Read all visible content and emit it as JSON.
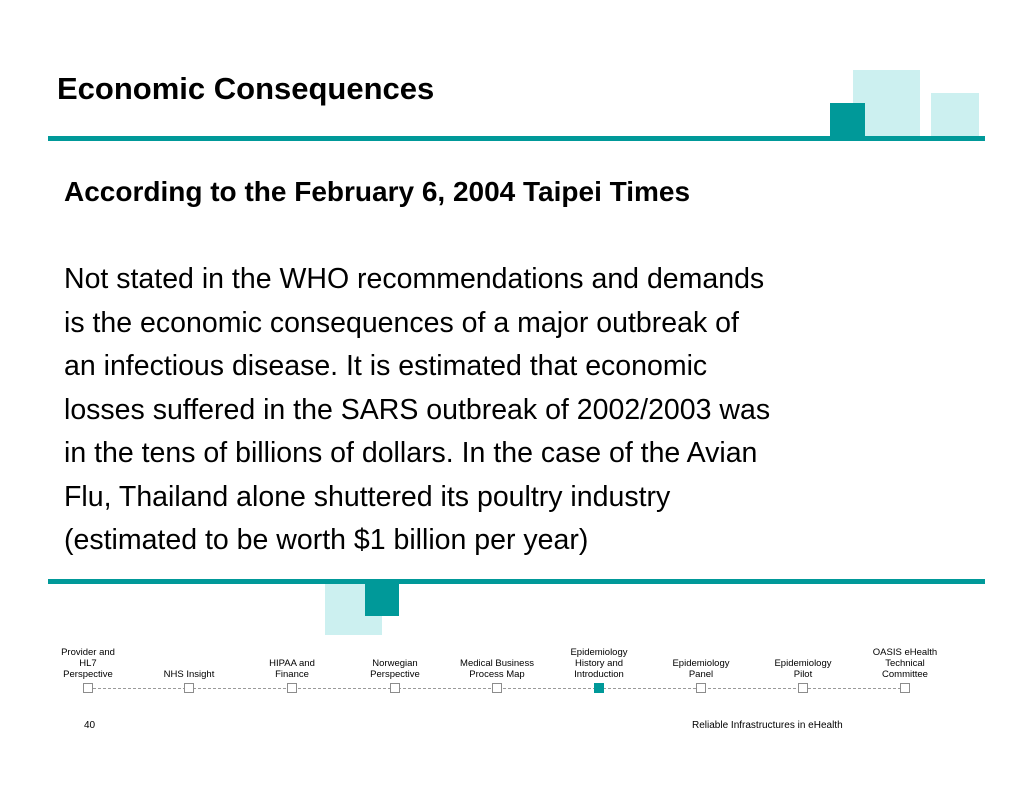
{
  "slide": {
    "title": "Economic Consequences",
    "subtitle": "According to the February 6, 2004 Taipei Times",
    "body_lines": [
      "Not stated in the WHO recommendations and demands",
      "is the economic consequences of a major outbreak of",
      "an infectious disease. It is estimated that economic",
      "losses suffered in the SARS outbreak of 2002/2003 was",
      "in the tens of billions of dollars. In the case of the Avian",
      "Flu, Thailand alone shuttered its poultry industry",
      "(estimated to be worth $1 billion per year)"
    ]
  },
  "nav": {
    "items": [
      {
        "label_lines": [
          "Provider and",
          "HL7",
          "Perspective"
        ],
        "active": false
      },
      {
        "label_lines": [
          "NHS Insight"
        ],
        "active": false
      },
      {
        "label_lines": [
          "HIPAA and",
          "Finance"
        ],
        "active": false
      },
      {
        "label_lines": [
          "Norwegian",
          "Perspective"
        ],
        "active": false
      },
      {
        "label_lines": [
          "Medical Business",
          "Process Map"
        ],
        "active": false
      },
      {
        "label_lines": [
          "Epidemiology",
          "History and",
          "Introduction"
        ],
        "active": true
      },
      {
        "label_lines": [
          "Epidemiology",
          "Panel"
        ],
        "active": false
      },
      {
        "label_lines": [
          "Epidemiology",
          "Pilot"
        ],
        "active": false
      },
      {
        "label_lines": [
          "OASIS eHealth",
          "Technical",
          "Committee"
        ],
        "active": false
      }
    ]
  },
  "footer": {
    "page_number": "40",
    "caption": "Reliable Infrastructures in eHealth"
  },
  "colors": {
    "accent": "#009999",
    "light_accent": "#ccf0f0",
    "text": "#000000"
  }
}
